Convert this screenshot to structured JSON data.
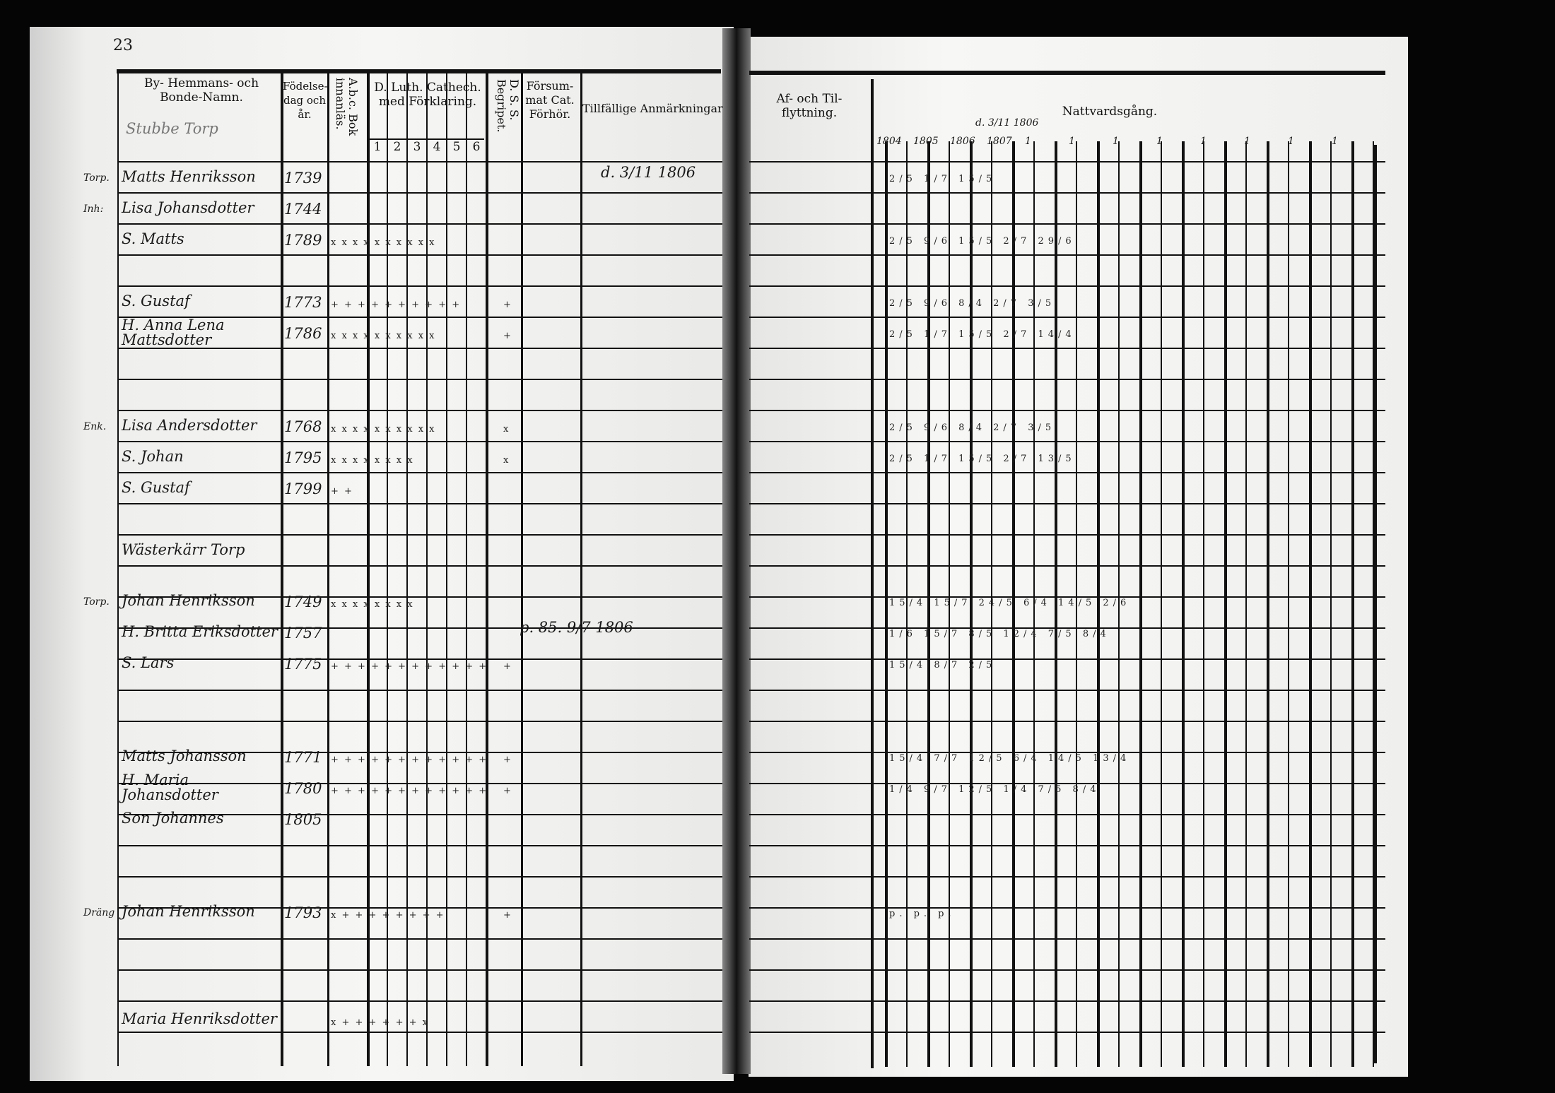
{
  "left_page": {
    "page_number": "23",
    "headers": {
      "name": "By- Hemmans- och Bonde-Namn.",
      "birth": "Födelse-dag och år.",
      "abc": "A.b.c. Bok innanläs.",
      "catechism": "D. Luth. Cathech. med Förklaring.",
      "catechism_parts": [
        "1",
        "2",
        "3",
        "4",
        "5",
        "6"
      ],
      "dss": "D. S. S. Begripet.",
      "forsumat": "Försum-mat Cat. Förhör.",
      "remarks": "Tillfällige Anmärkningar"
    },
    "section_label": "Stubbe Torp",
    "rows": [
      {
        "prefix": "Torp.",
        "name": "Matts Henriksson",
        "birth": "1739",
        "marks": "",
        "dss": "",
        "remark": "d. 3/11 1806"
      },
      {
        "prefix": "Inh:",
        "name": "Lisa Johansdotter",
        "birth": "1744",
        "marks": "",
        "dss": "",
        "remark": ""
      },
      {
        "prefix": "",
        "name": "S. Matts",
        "birth": "1789",
        "marks": "x x x x x x x x x x",
        "dss": "",
        "remark": ""
      },
      {
        "prefix": "",
        "name": "S. Gustaf",
        "birth": "1773",
        "marks": "+ + + + + + + + + +",
        "dss": "+",
        "remark": ""
      },
      {
        "prefix": "",
        "name": "H. Anna Lena Mattsdotter",
        "birth": "1786",
        "marks": "x x x x x x x x x x",
        "dss": "+",
        "remark": ""
      },
      {
        "prefix": "Enk.",
        "name": "Lisa Andersdotter",
        "birth": "1768",
        "marks": "x x x x x x x x x x",
        "dss": "x",
        "remark": ""
      },
      {
        "prefix": "",
        "name": "S. Johan",
        "birth": "1795",
        "marks": "x x x x x x x x",
        "dss": "x",
        "remark": ""
      },
      {
        "prefix": "",
        "name": "S. Gustaf",
        "birth": "1799",
        "marks": "+ +",
        "dss": "",
        "remark": ""
      },
      {
        "prefix": "",
        "name": "Wästerkärr Torp",
        "birth": "",
        "marks": "",
        "dss": "",
        "remark": ""
      },
      {
        "prefix": "Torp.",
        "name": "Johan Henriksson",
        "birth": "1749",
        "marks": "x x x x x x x x",
        "dss": "",
        "remark": ""
      },
      {
        "prefix": "",
        "name": "H. Britta Eriksdotter",
        "birth": "1757",
        "marks": "",
        "dss": "",
        "remark": "p. 85. 9/7 1806"
      },
      {
        "prefix": "",
        "name": "S. Lars",
        "birth": "1775",
        "marks": "+ + + + + + + + + + + +",
        "dss": "+",
        "remark": ""
      },
      {
        "prefix": "",
        "name": "Matts Johansson",
        "birth": "1771",
        "marks": "+ + + + + + + + + + + +",
        "dss": "+",
        "remark": ""
      },
      {
        "prefix": "",
        "name": "H. Maria Johansdotter",
        "birth": "1780",
        "marks": "+ + + + + + + + + + + +",
        "dss": "+",
        "remark": ""
      },
      {
        "prefix": "",
        "name": "Son Johannes",
        "birth": "1805",
        "marks": "",
        "dss": "",
        "remark": ""
      },
      {
        "prefix": "Dräng",
        "name": "Johan Henriksson",
        "birth": "1793",
        "marks": "x + + + + + + + +",
        "dss": "+",
        "remark": ""
      },
      {
        "prefix": "",
        "name": "Maria Henriksdotter",
        "birth": "",
        "marks": "x + + + + + + x",
        "dss": "",
        "remark": ""
      }
    ]
  },
  "right_page": {
    "headers": {
      "moving": "Af- och Til-flyttning.",
      "communion": "Nattvardsgång."
    },
    "year_labels": [
      "1804",
      "1805",
      "1806",
      "1807",
      "1",
      "1",
      "1",
      "1",
      "1",
      "1",
      "1",
      "1"
    ],
    "annotation": "d. 3/11 1806",
    "communion_marks": [
      {
        "row": 0,
        "text": "2/5 1/7 15/5"
      },
      {
        "row": 2,
        "text": "2/5 9/6 15/5 2/7 29/6"
      },
      {
        "row": 3,
        "text": "2/5 9/6 8/4 2/7 3/5"
      },
      {
        "row": 4,
        "text": "2/5 1/7 15/5 2/7 14/4"
      },
      {
        "row": 5,
        "text": "2/5 9/6 8/4 2/7 3/5"
      },
      {
        "row": 6,
        "text": "2/5 1/7 15/5 2/7 13/5"
      },
      {
        "row": 9,
        "text": "15/4 15/7 24/5 6/4 14/5 2/6"
      },
      {
        "row": 10,
        "text": "1/6 15/7 8/5 12/4 7/5 8/4"
      },
      {
        "row": 11,
        "text": "15/4 8/7 2/5"
      },
      {
        "row": 12,
        "text": "15/4 7/7 12/5 6/4 14/5 13/4"
      },
      {
        "row": 13,
        "text": "1/4 9/7 12/5 1/4 7/5 8/4"
      },
      {
        "row": 15,
        "text": "p. p. p."
      }
    ]
  }
}
